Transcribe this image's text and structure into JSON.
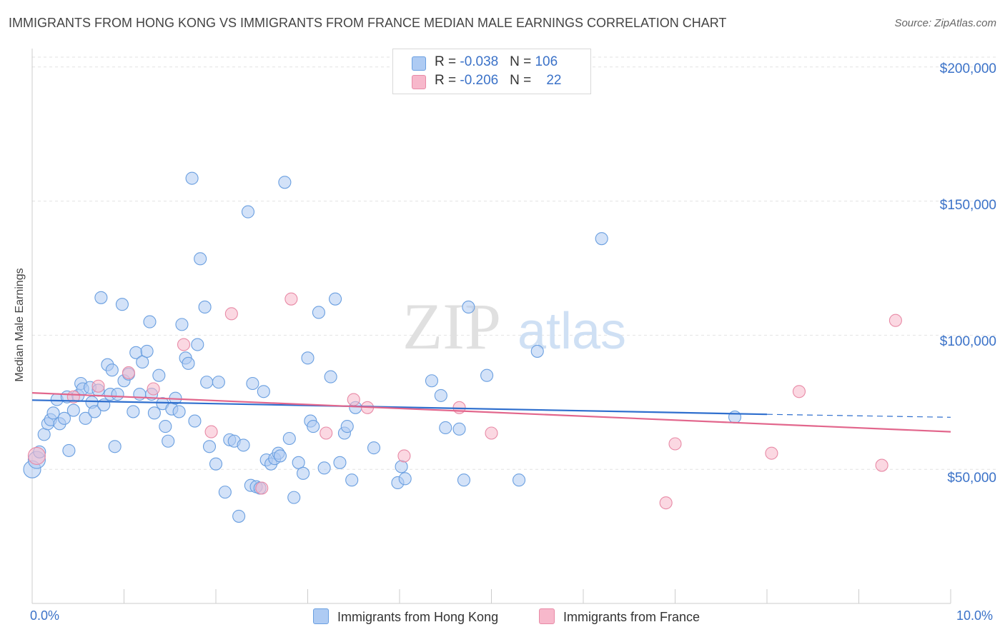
{
  "title": "IMMIGRANTS FROM HONG KONG VS IMMIGRANTS FROM FRANCE MEDIAN MALE EARNINGS CORRELATION CHART",
  "source": "Source: ZipAtlas.com",
  "watermark": {
    "zip": "ZIP",
    "atlas": "atlas"
  },
  "legend_top": [
    {
      "r_label": "R = ",
      "r_value": "-0.038",
      "n_label": "N = ",
      "n_value": "106",
      "color": "#aecbf3"
    },
    {
      "r_label": "R = ",
      "r_value": "-0.206",
      "n_label": "N = ",
      "n_value": "22",
      "color": "#f7b8cb"
    }
  ],
  "chart_data": {
    "type": "scatter",
    "title": "IMMIGRANTS FROM HONG KONG VS IMMIGRANTS FROM FRANCE MEDIAN MALE EARNINGS CORRELATION CHART",
    "xlabel": "",
    "ylabel": "Median Male Earnings",
    "xlim": [
      0,
      10
    ],
    "ylim": [
      0,
      205000
    ],
    "x_tick_labels": [
      "0.0%",
      "10.0%"
    ],
    "y_tick_labels": [
      "$50,000",
      "$100,000",
      "$150,000",
      "$200,000"
    ],
    "y_tick_values": [
      50000,
      100000,
      150000,
      200000
    ],
    "grid": true,
    "legend_position": "bottom",
    "series": [
      {
        "name": "Immigrants from Hong Kong",
        "color": "#6a9fe0",
        "fill": "#aecbf3",
        "trend": {
          "x": [
            0,
            8
          ],
          "y": [
            75800,
            70500
          ],
          "dashed_to_x": 10,
          "dashed_to_y": 69400,
          "color": "#2f6fce"
        },
        "points": [
          [
            0.0,
            50000
          ],
          [
            0.05,
            53500
          ],
          [
            0.08,
            56500
          ],
          [
            0.13,
            63000
          ],
          [
            0.17,
            67000
          ],
          [
            0.2,
            68500
          ],
          [
            0.23,
            71000
          ],
          [
            0.27,
            76000
          ],
          [
            0.3,
            67000
          ],
          [
            0.35,
            69000
          ],
          [
            0.38,
            77000
          ],
          [
            0.4,
            57000
          ],
          [
            0.45,
            72000
          ],
          [
            0.5,
            77500
          ],
          [
            0.53,
            82000
          ],
          [
            0.55,
            80000
          ],
          [
            0.58,
            69000
          ],
          [
            0.63,
            80500
          ],
          [
            0.65,
            75000
          ],
          [
            0.68,
            71500
          ],
          [
            0.72,
            79500
          ],
          [
            0.75,
            114000
          ],
          [
            0.78,
            74000
          ],
          [
            0.82,
            89000
          ],
          [
            0.85,
            78000
          ],
          [
            0.87,
            87000
          ],
          [
            0.9,
            58500
          ],
          [
            0.93,
            78000
          ],
          [
            0.98,
            111500
          ],
          [
            1.0,
            83000
          ],
          [
            1.05,
            85500
          ],
          [
            1.1,
            71500
          ],
          [
            1.13,
            93500
          ],
          [
            1.17,
            78000
          ],
          [
            1.2,
            90000
          ],
          [
            1.25,
            94000
          ],
          [
            1.28,
            105000
          ],
          [
            1.3,
            78000
          ],
          [
            1.33,
            71000
          ],
          [
            1.38,
            85000
          ],
          [
            1.42,
            74500
          ],
          [
            1.45,
            66000
          ],
          [
            1.48,
            60500
          ],
          [
            1.52,
            72500
          ],
          [
            1.56,
            76500
          ],
          [
            1.6,
            71500
          ],
          [
            1.63,
            104000
          ],
          [
            1.67,
            91500
          ],
          [
            1.7,
            89500
          ],
          [
            1.74,
            158500
          ],
          [
            1.77,
            68000
          ],
          [
            1.8,
            96500
          ],
          [
            1.83,
            128500
          ],
          [
            1.88,
            110500
          ],
          [
            1.9,
            82500
          ],
          [
            1.93,
            58500
          ],
          [
            2.0,
            52000
          ],
          [
            2.03,
            82500
          ],
          [
            2.1,
            41500
          ],
          [
            2.15,
            61000
          ],
          [
            2.2,
            60500
          ],
          [
            2.25,
            32500
          ],
          [
            2.3,
            59000
          ],
          [
            2.35,
            146000
          ],
          [
            2.38,
            44000
          ],
          [
            2.4,
            82000
          ],
          [
            2.44,
            43500
          ],
          [
            2.48,
            43000
          ],
          [
            2.52,
            79000
          ],
          [
            2.55,
            53500
          ],
          [
            2.6,
            52000
          ],
          [
            2.64,
            54000
          ],
          [
            2.68,
            56000
          ],
          [
            2.7,
            55000
          ],
          [
            2.75,
            157000
          ],
          [
            2.8,
            61500
          ],
          [
            2.85,
            39500
          ],
          [
            2.9,
            52500
          ],
          [
            2.95,
            48500
          ],
          [
            3.0,
            91500
          ],
          [
            3.03,
            68000
          ],
          [
            3.06,
            66000
          ],
          [
            3.12,
            108500
          ],
          [
            3.18,
            50500
          ],
          [
            3.25,
            84500
          ],
          [
            3.3,
            113500
          ],
          [
            3.35,
            52500
          ],
          [
            3.4,
            63500
          ],
          [
            3.43,
            66000
          ],
          [
            3.48,
            46000
          ],
          [
            3.52,
            73000
          ],
          [
            3.72,
            58000
          ],
          [
            3.98,
            45000
          ],
          [
            4.02,
            51000
          ],
          [
            4.06,
            46500
          ],
          [
            4.35,
            83000
          ],
          [
            4.45,
            77500
          ],
          [
            4.5,
            65500
          ],
          [
            4.65,
            65000
          ],
          [
            4.7,
            46000
          ],
          [
            4.75,
            110500
          ],
          [
            4.95,
            85000
          ],
          [
            5.3,
            46000
          ],
          [
            5.5,
            94000
          ],
          [
            6.2,
            136000
          ],
          [
            7.65,
            69500
          ]
        ]
      },
      {
        "name": "Immigrants from France",
        "color": "#e88aa6",
        "fill": "#f7b8cb",
        "trend": {
          "x": [
            0,
            10
          ],
          "y": [
            78500,
            64000
          ],
          "color": "#e2668c"
        },
        "points": [
          [
            0.05,
            55000
          ],
          [
            0.45,
            77000
          ],
          [
            0.72,
            81000
          ],
          [
            1.05,
            86000
          ],
          [
            1.32,
            80000
          ],
          [
            1.65,
            96500
          ],
          [
            1.95,
            64000
          ],
          [
            2.17,
            108000
          ],
          [
            2.5,
            43000
          ],
          [
            2.82,
            113500
          ],
          [
            3.2,
            63500
          ],
          [
            3.5,
            76000
          ],
          [
            3.65,
            73000
          ],
          [
            4.05,
            55000
          ],
          [
            4.65,
            73000
          ],
          [
            5.0,
            63500
          ],
          [
            6.9,
            37500
          ],
          [
            7.0,
            59500
          ],
          [
            8.05,
            56000
          ],
          [
            8.35,
            79000
          ],
          [
            9.25,
            51500
          ],
          [
            9.4,
            105500
          ]
        ]
      }
    ]
  }
}
